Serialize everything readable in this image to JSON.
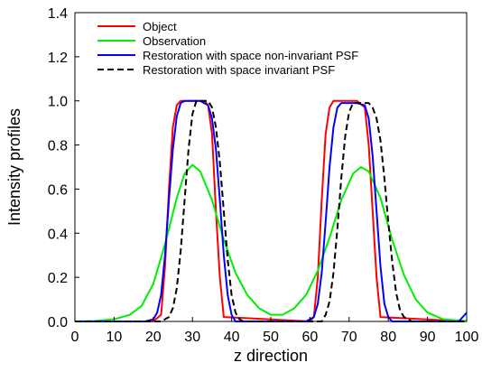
{
  "chart_data": {
    "type": "line",
    "title": "",
    "xlabel": "z direction",
    "ylabel": "Intensity profiles",
    "xlim": [
      0,
      100
    ],
    "ylim": [
      0,
      1.4
    ],
    "xticks": [
      0,
      10,
      20,
      30,
      40,
      50,
      60,
      70,
      80,
      90,
      100
    ],
    "yticks": [
      0.0,
      0.2,
      0.4,
      0.6,
      0.8,
      1.0,
      1.2,
      1.4
    ],
    "ytick_labels": [
      "0.0",
      "0.2",
      "0.4",
      "0.6",
      "0.8",
      "1.0",
      "1.2",
      "1.4"
    ],
    "grid": false,
    "legend": "top-left",
    "series": [
      {
        "name": "Object",
        "color": "#ff0000",
        "dash": "solid",
        "x": [
          0,
          20,
          22,
          23,
          24,
          25,
          26,
          27,
          28,
          33,
          34,
          35,
          36,
          37,
          38,
          60,
          61,
          62,
          63,
          64,
          65,
          66,
          72,
          74,
          75,
          76,
          77,
          78,
          100
        ],
        "y": [
          0,
          0,
          0.03,
          0.25,
          0.6,
          0.88,
          0.98,
          1.0,
          1.0,
          1.0,
          0.98,
          0.85,
          0.5,
          0.2,
          0.02,
          0,
          0.02,
          0.2,
          0.55,
          0.85,
          0.97,
          1.0,
          1.0,
          0.97,
          0.8,
          0.5,
          0.2,
          0.02,
          0
        ]
      },
      {
        "name": "Observation",
        "color": "#00ee00",
        "dash": "solid",
        "x": [
          0,
          5,
          10,
          14,
          17,
          20,
          23,
          26,
          28,
          30,
          32,
          35,
          38,
          41,
          44,
          47,
          50,
          53,
          56,
          59,
          62,
          65,
          68,
          71,
          73,
          75,
          78,
          81,
          84,
          87,
          90,
          94,
          100
        ],
        "y": [
          0,
          0.002,
          0.01,
          0.03,
          0.07,
          0.17,
          0.35,
          0.56,
          0.67,
          0.71,
          0.68,
          0.55,
          0.37,
          0.22,
          0.12,
          0.06,
          0.03,
          0.03,
          0.06,
          0.12,
          0.23,
          0.38,
          0.55,
          0.67,
          0.7,
          0.68,
          0.56,
          0.37,
          0.21,
          0.1,
          0.04,
          0.01,
          0.002
        ]
      },
      {
        "name": "Restoration with space non-invariant PSF",
        "color": "#0000ff",
        "dash": "solid",
        "x": [
          0,
          18,
          20,
          21,
          22,
          23,
          24,
          25,
          26,
          27,
          28,
          32,
          34,
          35,
          36,
          37,
          38,
          39,
          40,
          41,
          59,
          61,
          62,
          63,
          64,
          65,
          66,
          67,
          68,
          72,
          74,
          75,
          76,
          77,
          78,
          79,
          80,
          81,
          82,
          98,
          99,
          100
        ],
        "y": [
          0,
          0,
          0.01,
          0.04,
          0.12,
          0.3,
          0.55,
          0.78,
          0.93,
          0.99,
          1.0,
          1.0,
          0.98,
          0.92,
          0.78,
          0.55,
          0.3,
          0.12,
          0.03,
          0,
          0,
          0.02,
          0.08,
          0.22,
          0.45,
          0.7,
          0.88,
          0.97,
          0.99,
          0.99,
          0.98,
          0.92,
          0.75,
          0.5,
          0.25,
          0.08,
          0.02,
          0,
          0,
          0,
          0.02,
          0.04
        ]
      },
      {
        "name": "Restoration with space invariant PSF",
        "color": "#000000",
        "dash": "dashed",
        "x": [
          0,
          22,
          24,
          25,
          26,
          27,
          28,
          29,
          30,
          31,
          32,
          34,
          35,
          36,
          37,
          38,
          39,
          40,
          41,
          42,
          43,
          63,
          64,
          65,
          66,
          67,
          68,
          69,
          70,
          71,
          72,
          73,
          74,
          75,
          76,
          77,
          78,
          79,
          80,
          81,
          82,
          83,
          84,
          85,
          86,
          98,
          100
        ],
        "y": [
          0,
          0,
          0.02,
          0.06,
          0.15,
          0.32,
          0.55,
          0.78,
          0.94,
          1.0,
          1.0,
          1.0,
          0.97,
          0.88,
          0.72,
          0.5,
          0.28,
          0.12,
          0.04,
          0.01,
          0,
          0,
          0.03,
          0.09,
          0.22,
          0.42,
          0.65,
          0.84,
          0.95,
          0.99,
          0.99,
          0.99,
          0.99,
          0.99,
          0.97,
          0.92,
          0.82,
          0.65,
          0.45,
          0.27,
          0.13,
          0.05,
          0.02,
          0.01,
          0,
          0,
          0
        ]
      }
    ]
  }
}
